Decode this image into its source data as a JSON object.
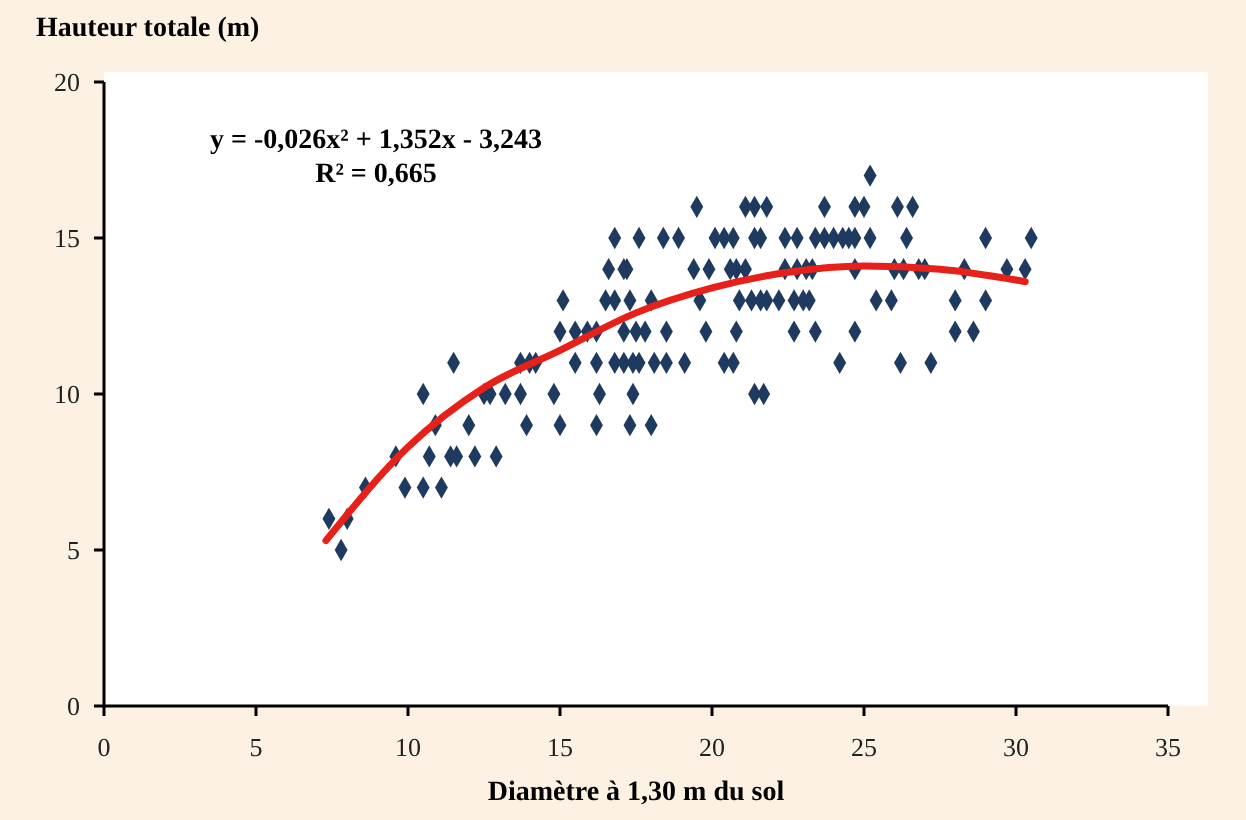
{
  "chart_data": {
    "type": "scatter",
    "title": "Hauteur totale (m)",
    "xlabel": "Diamètre à 1,30 m du sol",
    "annotations": [
      "y = -0,026x² + 1,352x - 3,243",
      "R² = 0,665"
    ],
    "xlim": [
      0,
      35
    ],
    "xticks": [
      0,
      5,
      10,
      15,
      20,
      25,
      30,
      35
    ],
    "ylim": [
      0,
      20
    ],
    "yticks": [
      0,
      5,
      10,
      15,
      20
    ],
    "grid": false,
    "series": [
      {
        "color": "#1f3a5f",
        "marker": "diamond",
        "x": [
          7.8,
          7.4,
          8.0,
          8.6,
          9.9,
          10.5,
          11.1,
          9.6,
          10.7,
          11.4,
          11.6,
          12.2,
          12.9,
          10.9,
          12.0,
          13.9,
          15.0,
          16.2,
          17.3,
          18.0,
          10.5,
          12.5,
          12.7,
          13.2,
          13.7,
          14.8,
          16.3,
          17.4,
          19.1,
          20.4,
          20.7,
          21.4,
          21.7,
          24.2,
          26.2,
          27.2,
          11.5,
          13.7,
          14.0,
          14.2,
          15.5,
          16.2,
          16.8,
          17.1,
          17.4,
          17.6,
          18.1,
          18.5,
          15.0,
          15.5,
          15.9,
          16.2,
          17.1,
          17.5,
          17.8,
          18.5,
          19.8,
          20.8,
          22.7,
          23.4,
          24.7,
          28.0,
          28.6,
          15.1,
          16.5,
          16.8,
          17.3,
          18.0,
          19.6,
          20.9,
          21.3,
          21.6,
          21.8,
          22.2,
          22.7,
          23.0,
          23.2,
          25.4,
          25.9,
          28.0,
          29.0,
          16.6,
          17.1,
          17.2,
          19.4,
          19.9,
          20.6,
          20.8,
          21.1,
          22.4,
          22.8,
          23.1,
          23.3,
          24.7,
          26.0,
          26.3,
          26.8,
          27.0,
          28.3,
          29.7,
          30.3,
          16.8,
          17.6,
          18.4,
          18.9,
          20.1,
          20.4,
          20.7,
          21.4,
          21.6,
          22.4,
          22.8,
          23.4,
          23.7,
          24.0,
          24.3,
          24.5,
          24.7,
          25.2,
          26.4,
          29.0,
          30.5,
          19.5,
          21.1,
          21.4,
          21.8,
          23.7,
          24.7,
          25.0,
          26.1,
          26.6,
          25.2
        ],
        "values": [
          5,
          6,
          6,
          7,
          7,
          7,
          7,
          8,
          8,
          8,
          8,
          8,
          8,
          9,
          9,
          9,
          9,
          9,
          9,
          9,
          10,
          10,
          10,
          10,
          10,
          10,
          10,
          10,
          11,
          11,
          11,
          10,
          10,
          11,
          11,
          11,
          11,
          11,
          11,
          11,
          11,
          11,
          11,
          11,
          11,
          11,
          11,
          11,
          12,
          12,
          12,
          12,
          12,
          12,
          12,
          12,
          12,
          12,
          12,
          12,
          12,
          12,
          12,
          13,
          13,
          13,
          13,
          13,
          13,
          13,
          13,
          13,
          13,
          13,
          13,
          13,
          13,
          13,
          13,
          13,
          13,
          14,
          14,
          14,
          14,
          14,
          14,
          14,
          14,
          14,
          14,
          14,
          14,
          14,
          14,
          14,
          14,
          14,
          14,
          14,
          14,
          15,
          15,
          15,
          15,
          15,
          15,
          15,
          15,
          15,
          15,
          15,
          15,
          15,
          15,
          15,
          15,
          15,
          15,
          15,
          15,
          15,
          16,
          16,
          16,
          16,
          16,
          16,
          16,
          16,
          16,
          17
        ]
      },
      {
        "type": "line",
        "color": "#e8201a",
        "marker": "none",
        "line_style": "solid",
        "x": [
          7.3,
          10,
          12.5,
          15,
          17.5,
          20,
          22.5,
          25,
          27.5,
          30.3
        ],
        "values": [
          5.3,
          8.3,
          10.2,
          11.4,
          12.6,
          13.4,
          13.9,
          14.1,
          14.0,
          13.6
        ]
      }
    ]
  }
}
